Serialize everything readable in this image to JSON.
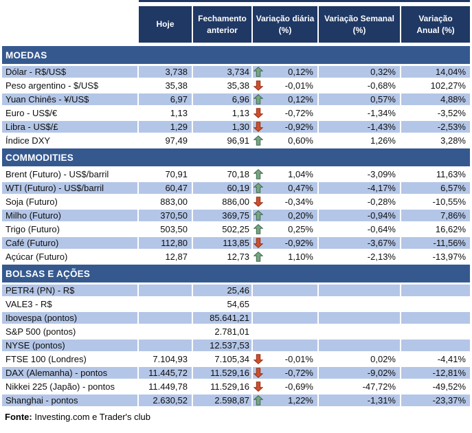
{
  "chart_data": {
    "type": "table",
    "columns": [
      "Hoje",
      "Fechamento\nanterior",
      "Variação diária\n(%)",
      "Variação Semanal\n(%)",
      "Variação\nAnual (%)"
    ],
    "sections": [
      {
        "title": "MOEDAS",
        "first_row_shaded": true,
        "rows": [
          {
            "label": "Dólar - R$/US$",
            "hoje": "3,738",
            "fechamento_anterior": "3,734",
            "arrow": "up",
            "variacao_diaria": "0,12%",
            "variacao_semanal": "0,32%",
            "variacao_anual": "14,04%"
          },
          {
            "label": "Peso argentino - $/US$",
            "hoje": "35,38",
            "fechamento_anterior": "35,38",
            "arrow": "down",
            "variacao_diaria": "-0,01%",
            "variacao_semanal": "-0,68%",
            "variacao_anual": "102,27%"
          },
          {
            "label": "Yuan Chinês - ¥/US$",
            "hoje": "6,97",
            "fechamento_anterior": "6,96",
            "arrow": "up",
            "variacao_diaria": "0,12%",
            "variacao_semanal": "0,57%",
            "variacao_anual": "4,88%"
          },
          {
            "label": "Euro - US$/€",
            "hoje": "1,13",
            "fechamento_anterior": "1,13",
            "arrow": "down",
            "variacao_diaria": "-0,72%",
            "variacao_semanal": "-1,34%",
            "variacao_anual": "-3,52%"
          },
          {
            "label": "Libra - US$/£",
            "hoje": "1,29",
            "fechamento_anterior": "1,30",
            "arrow": "down",
            "variacao_diaria": "-0,92%",
            "variacao_semanal": "-1,43%",
            "variacao_anual": "-2,53%"
          },
          {
            "label": "Índice DXY",
            "hoje": "97,49",
            "fechamento_anterior": "96,91",
            "arrow": "up",
            "variacao_diaria": "0,60%",
            "variacao_semanal": "1,26%",
            "variacao_anual": "3,28%"
          }
        ]
      },
      {
        "title": "COMMODITIES",
        "first_row_shaded": false,
        "rows": [
          {
            "label": "Brent (Futuro) - US$/barril",
            "hoje": "70,91",
            "fechamento_anterior": "70,18",
            "arrow": "up",
            "variacao_diaria": "1,04%",
            "variacao_semanal": "-3,09%",
            "variacao_anual": "11,63%"
          },
          {
            "label": "WTI (Futuro) - US$/barril",
            "hoje": "60,47",
            "fechamento_anterior": "60,19",
            "arrow": "up",
            "variacao_diaria": "0,47%",
            "variacao_semanal": "-4,17%",
            "variacao_anual": "6,57%"
          },
          {
            "label": "Soja (Futuro)",
            "hoje": "883,00",
            "fechamento_anterior": "886,00",
            "arrow": "down",
            "variacao_diaria": "-0,34%",
            "variacao_semanal": "-0,28%",
            "variacao_anual": "-10,55%"
          },
          {
            "label": "Milho (Futuro)",
            "hoje": "370,50",
            "fechamento_anterior": "369,75",
            "arrow": "up",
            "variacao_diaria": "0,20%",
            "variacao_semanal": "-0,94%",
            "variacao_anual": "7,86%"
          },
          {
            "label": "Trigo (Futuro)",
            "hoje": "503,50",
            "fechamento_anterior": "502,25",
            "arrow": "up",
            "variacao_diaria": "0,25%",
            "variacao_semanal": "-0,64%",
            "variacao_anual": "16,62%"
          },
          {
            "label": "Café (Futuro)",
            "hoje": "112,80",
            "fechamento_anterior": "113,85",
            "arrow": "down",
            "variacao_diaria": "-0,92%",
            "variacao_semanal": "-3,67%",
            "variacao_anual": "-11,56%"
          },
          {
            "label": "Açúcar (Futuro)",
            "hoje": "12,87",
            "fechamento_anterior": "12,73",
            "arrow": "up",
            "variacao_diaria": "1,10%",
            "variacao_semanal": "-2,13%",
            "variacao_anual": "-13,97%"
          }
        ]
      },
      {
        "title": "BOLSAS E AÇÕES",
        "first_row_shaded": true,
        "rows": [
          {
            "label": "PETR4 (PN) - R$",
            "hoje": "",
            "fechamento_anterior": "25,46",
            "arrow": null,
            "variacao_diaria": "",
            "variacao_semanal": "",
            "variacao_anual": ""
          },
          {
            "label": "VALE3 - R$",
            "hoje": "",
            "fechamento_anterior": "54,65",
            "arrow": null,
            "variacao_diaria": "",
            "variacao_semanal": "",
            "variacao_anual": ""
          },
          {
            "label": "Ibovespa (pontos)",
            "hoje": "",
            "fechamento_anterior": "85.641,21",
            "arrow": null,
            "variacao_diaria": "",
            "variacao_semanal": "",
            "variacao_anual": ""
          },
          {
            "label": "S&P 500 (pontos)",
            "hoje": "",
            "fechamento_anterior": "2.781,01",
            "arrow": null,
            "variacao_diaria": "",
            "variacao_semanal": "",
            "variacao_anual": ""
          },
          {
            "label": "NYSE (pontos)",
            "hoje": "",
            "fechamento_anterior": "12.537,53",
            "arrow": null,
            "variacao_diaria": "",
            "variacao_semanal": "",
            "variacao_anual": ""
          },
          {
            "label": "FTSE 100 (Londres)",
            "hoje": "7.104,93",
            "fechamento_anterior": "7.105,34",
            "arrow": "down",
            "variacao_diaria": "-0,01%",
            "variacao_semanal": "0,02%",
            "variacao_anual": "-4,41%"
          },
          {
            "label": "DAX (Alemanha) - pontos",
            "hoje": "11.445,72",
            "fechamento_anterior": "11.529,16",
            "arrow": "down",
            "variacao_diaria": "-0,72%",
            "variacao_semanal": "-9,02%",
            "variacao_anual": "-12,81%"
          },
          {
            "label": "Nikkei 225 (Japão) - pontos",
            "hoje": "11.449,78",
            "fechamento_anterior": "11.529,16",
            "arrow": "down",
            "variacao_diaria": "-0,69%",
            "variacao_semanal": "-47,72%",
            "variacao_anual": "-49,52%"
          },
          {
            "label": "Shanghai - pontos",
            "hoje": "2.630,52",
            "fechamento_anterior": "2.598,87",
            "arrow": "up",
            "variacao_diaria": "1,22%",
            "variacao_semanal": "-1,31%",
            "variacao_anual": "-23,37%"
          }
        ]
      }
    ],
    "footer": {
      "label": "Fonte:",
      "text": " Investing.com e Trader's club"
    }
  },
  "colors": {
    "header_bg": "#1F3864",
    "section_bg": "#35598F",
    "row_shaded_bg": "#B4C6E7",
    "row_plain_bg": "#FFFFFF",
    "up_arrow_fill": "#78A582",
    "up_arrow_stroke": "#3C694B",
    "down_arrow_fill": "#CD502D",
    "down_arrow_stroke": "#962D14"
  },
  "icons": {
    "up": "up-arrow-icon",
    "down": "down-arrow-icon"
  }
}
